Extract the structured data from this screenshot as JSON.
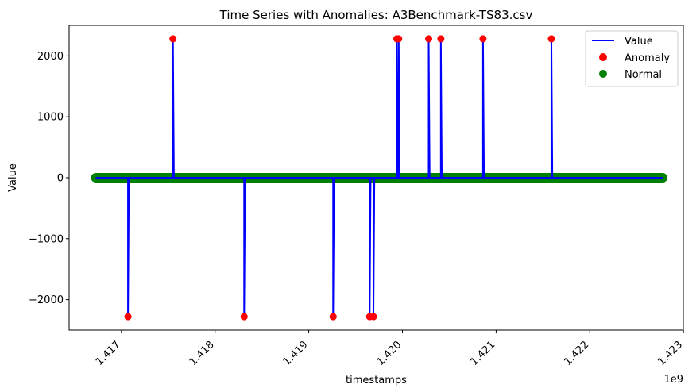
{
  "chart_data": {
    "type": "line",
    "title": "Time Series with Anomalies: A3Benchmark-TS83.csv",
    "xlabel": "timestamps",
    "ylabel": "Value",
    "x_offset_label": "1e9",
    "xlim": [
      1416441600,
      1422998400
    ],
    "ylim": [
      -2500,
      2500
    ],
    "x_ticks": [
      1.417,
      1.418,
      1.419,
      1.42,
      1.421,
      1.422,
      1.423
    ],
    "x_tick_labels": [
      "1.417",
      "1.418",
      "1.419",
      "1.420",
      "1.421",
      "1.422",
      "1.423"
    ],
    "y_ticks": [
      -2000,
      -1000,
      0,
      1000,
      2000
    ],
    "y_tick_labels": [
      "−2000",
      "−1000",
      "0",
      "1000",
      "2000"
    ],
    "x_start": 1416726000,
    "x_end": 1422777600,
    "baseline": 0,
    "legend_position": "top-right",
    "legend": [
      {
        "label": "Value",
        "kind": "line",
        "color": "#0000ff"
      },
      {
        "label": "Anomaly",
        "kind": "dot",
        "color": "#ff0000"
      },
      {
        "label": "Normal",
        "kind": "dot",
        "color": "#008000"
      }
    ],
    "series": [
      {
        "name": "Anomaly",
        "color": "#ff0000",
        "points": [
          {
            "x": 1417070000,
            "y": -2280
          },
          {
            "x": 1417550000,
            "y": 2280
          },
          {
            "x": 1418310000,
            "y": -2280
          },
          {
            "x": 1419260000,
            "y": -2280
          },
          {
            "x": 1419650000,
            "y": -2280
          },
          {
            "x": 1419690000,
            "y": -2280
          },
          {
            "x": 1419940000,
            "y": 2280
          },
          {
            "x": 1419960000,
            "y": 2280
          },
          {
            "x": 1420280000,
            "y": 2280
          },
          {
            "x": 1420410000,
            "y": 2280
          },
          {
            "x": 1420860000,
            "y": 2280
          },
          {
            "x": 1421590000,
            "y": 2280
          }
        ]
      }
    ]
  }
}
